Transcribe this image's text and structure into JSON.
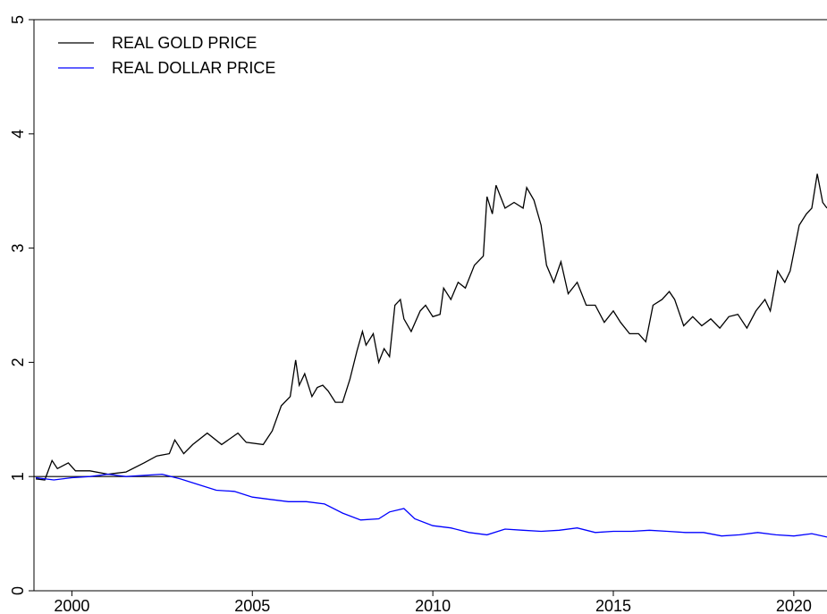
{
  "chart_data": {
    "type": "line",
    "xlim": [
      1998.95,
      2020.92
    ],
    "xticks": [
      2000,
      2005,
      2010,
      2015,
      2020
    ],
    "ylim": [
      0,
      5
    ],
    "yticks": [
      0,
      1,
      2,
      3,
      4,
      5
    ],
    "reference_line": 1,
    "legend": "top-left",
    "series": [
      {
        "name": "REAL GOLD PRICE",
        "color": "#000000",
        "x": [
          1999.0,
          1999.25,
          1999.45,
          1999.6,
          1999.9,
          2000.1,
          2000.5,
          2001.0,
          2001.5,
          2002.0,
          2002.35,
          2002.7,
          2002.85,
          2003.1,
          2003.35,
          2003.75,
          2004.15,
          2004.6,
          2004.83,
          2005.3,
          2005.55,
          2005.8,
          2006.05,
          2006.2,
          2006.3,
          2006.45,
          2006.65,
          2006.8,
          2006.95,
          2007.1,
          2007.3,
          2007.5,
          2007.7,
          2007.9,
          2008.05,
          2008.15,
          2008.35,
          2008.5,
          2008.65,
          2008.8,
          2008.95,
          2009.1,
          2009.2,
          2009.4,
          2009.65,
          2009.8,
          2010.0,
          2010.2,
          2010.3,
          2010.5,
          2010.7,
          2010.9,
          2011.15,
          2011.4,
          2011.5,
          2011.65,
          2011.75,
          2012.0,
          2012.25,
          2012.5,
          2012.6,
          2012.8,
          2013.0,
          2013.15,
          2013.35,
          2013.55,
          2013.75,
          2014.0,
          2014.25,
          2014.5,
          2014.75,
          2015.0,
          2015.2,
          2015.45,
          2015.7,
          2015.9,
          2016.1,
          2016.35,
          2016.55,
          2016.7,
          2016.95,
          2017.2,
          2017.45,
          2017.7,
          2017.95,
          2018.2,
          2018.45,
          2018.7,
          2018.95,
          2019.2,
          2019.35,
          2019.55,
          2019.75,
          2019.9,
          2020.15,
          2020.35,
          2020.5,
          2020.65,
          2020.8,
          2020.92
        ],
        "values": [
          0.98,
          0.97,
          1.14,
          1.07,
          1.12,
          1.05,
          1.05,
          1.02,
          1.04,
          1.12,
          1.18,
          1.2,
          1.32,
          1.2,
          1.28,
          1.38,
          1.28,
          1.38,
          1.3,
          1.28,
          1.4,
          1.62,
          1.7,
          2.02,
          1.8,
          1.9,
          1.7,
          1.78,
          1.8,
          1.75,
          1.65,
          1.65,
          1.85,
          2.1,
          2.27,
          2.15,
          2.25,
          2.0,
          2.12,
          2.05,
          2.5,
          2.55,
          2.38,
          2.27,
          2.45,
          2.5,
          2.4,
          2.42,
          2.65,
          2.55,
          2.7,
          2.65,
          2.85,
          2.93,
          3.45,
          3.3,
          3.55,
          3.35,
          3.4,
          3.35,
          3.53,
          3.42,
          3.2,
          2.85,
          2.7,
          2.88,
          2.6,
          2.7,
          2.5,
          2.5,
          2.35,
          2.45,
          2.35,
          2.25,
          2.25,
          2.18,
          2.5,
          2.55,
          2.62,
          2.55,
          2.32,
          2.4,
          2.32,
          2.38,
          2.3,
          2.4,
          2.42,
          2.3,
          2.45,
          2.55,
          2.45,
          2.8,
          2.7,
          2.8,
          3.2,
          3.3,
          3.35,
          3.65,
          3.4,
          3.35
        ]
      },
      {
        "name": "REAL DOLLAR PRICE",
        "color": "#0000ff",
        "x": [
          1999.0,
          1999.5,
          2000.0,
          2000.5,
          2001.0,
          2001.5,
          2002.0,
          2002.5,
          2003.0,
          2003.5,
          2004.0,
          2004.5,
          2005.0,
          2005.5,
          2006.0,
          2006.5,
          2007.0,
          2007.5,
          2008.0,
          2008.5,
          2008.8,
          2009.2,
          2009.5,
          2010.0,
          2010.5,
          2011.0,
          2011.5,
          2012.0,
          2012.5,
          2013.0,
          2013.5,
          2014.0,
          2014.5,
          2015.0,
          2015.5,
          2016.0,
          2016.5,
          2017.0,
          2017.5,
          2018.0,
          2018.5,
          2019.0,
          2019.5,
          2020.0,
          2020.5,
          2020.92
        ],
        "values": [
          0.99,
          0.97,
          0.99,
          1.0,
          1.02,
          1.0,
          1.01,
          1.02,
          0.98,
          0.93,
          0.88,
          0.87,
          0.82,
          0.8,
          0.78,
          0.78,
          0.76,
          0.68,
          0.62,
          0.63,
          0.69,
          0.72,
          0.63,
          0.57,
          0.55,
          0.51,
          0.49,
          0.54,
          0.53,
          0.52,
          0.53,
          0.55,
          0.51,
          0.52,
          0.52,
          0.53,
          0.52,
          0.51,
          0.51,
          0.48,
          0.49,
          0.51,
          0.49,
          0.48,
          0.5,
          0.47
        ]
      }
    ]
  }
}
